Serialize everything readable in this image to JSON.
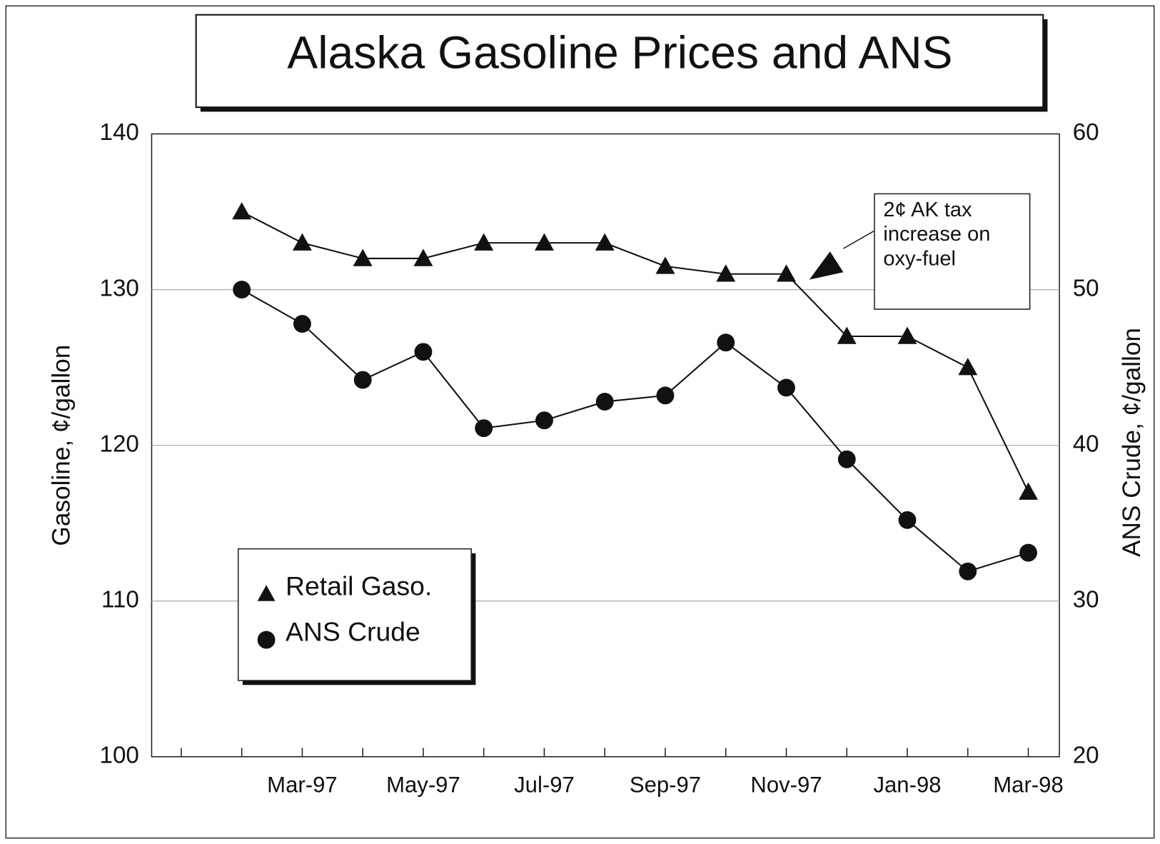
{
  "chart_data": {
    "type": "line",
    "title": "Alaska Gasoline Prices and ANS",
    "ylabel": "Gasoline, ¢/gallon",
    "y2label": "ANS Crude, ¢/gallon",
    "categories": [
      null,
      null,
      "Mar-97",
      null,
      "May-97",
      null,
      "Jul-97",
      null,
      "Sep-97",
      null,
      "Nov-97",
      null,
      "Jan-98",
      null,
      "Mar-98"
    ],
    "series": [
      {
        "name": "Retail Gaso.",
        "color": "#111111",
        "marker": "triangle",
        "values": [
          null,
          135,
          133,
          132,
          132,
          133,
          133,
          133,
          131.5,
          131,
          131,
          127,
          127,
          125,
          117
        ]
      },
      {
        "name": "ANS Crude",
        "color": "#111111",
        "marker": "circle",
        "axis": "y2",
        "values": [
          null,
          50,
          47.8,
          44.2,
          46,
          41.1,
          41.6,
          42.8,
          43.2,
          46.6,
          43.7,
          39.1,
          35.2,
          31.9,
          33.1
        ]
      }
    ],
    "ylim": [
      100,
      140
    ],
    "yticks": [
      100,
      110,
      120,
      130,
      140
    ],
    "y2lim": [
      20,
      60
    ],
    "y2ticks": [
      20,
      30,
      40,
      50,
      60
    ],
    "grid": true,
    "legend": "lower left",
    "annotation": {
      "lines": [
        "2¢ AK tax",
        "increase on",
        "oxy-fuel"
      ]
    }
  }
}
